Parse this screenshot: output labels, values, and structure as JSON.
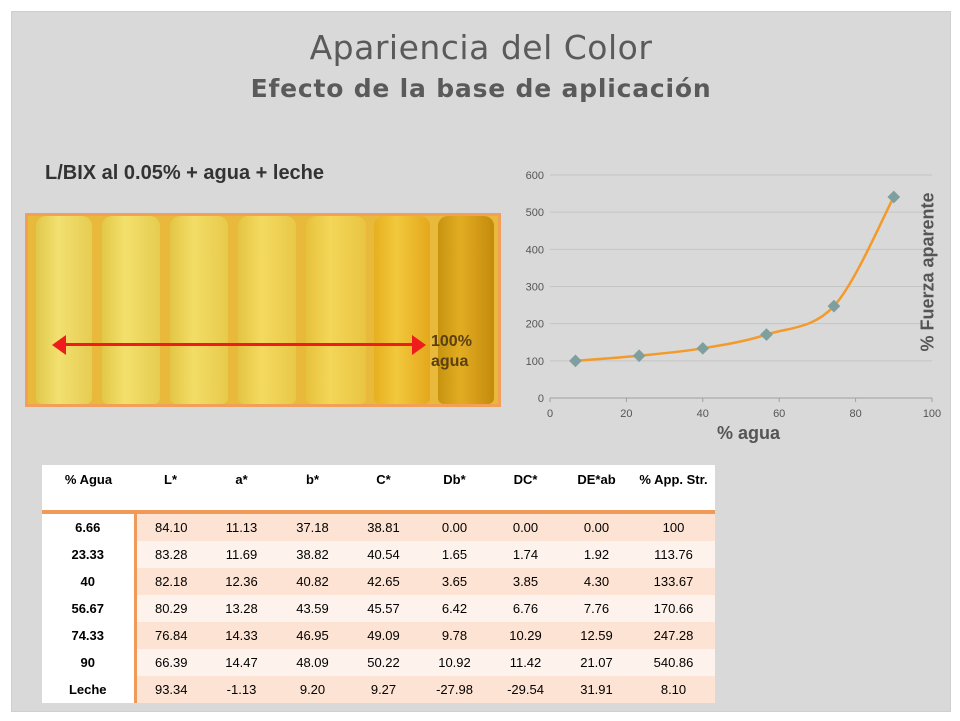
{
  "title": "Apariencia del Color",
  "subtitle": "Efecto de la base de aplicación",
  "photo_caption": "L/BIX  al  0.05% + agua + leche",
  "photo_label_line1": "100%",
  "photo_label_line2": "agua",
  "colors": {
    "background": "#d9d9d9",
    "accent_orange": "#f09a5a",
    "curve": "#f39a2a",
    "marker": "#7f9f9f",
    "arrow": "#ee1c1c"
  },
  "chart_data": {
    "type": "scatter",
    "xlabel": "% agua",
    "ylabel": "% Fuerza aparente",
    "xlim": [
      0,
      100
    ],
    "ylim": [
      0,
      600
    ],
    "x_ticks": [
      "0",
      "20",
      "40",
      "60",
      "80",
      "100"
    ],
    "y_ticks": [
      "0",
      "100",
      "200",
      "300",
      "400",
      "500",
      "600"
    ],
    "grid": "horizontal",
    "series": [
      {
        "x": [
          6.66,
          23.33,
          40,
          56.67,
          74.33,
          90
        ],
        "y": [
          100,
          113.76,
          133.67,
          170.66,
          247.28,
          540.86
        ]
      }
    ]
  },
  "table": {
    "headers": [
      "% Agua",
      "L*",
      "a*",
      "b*",
      "C*",
      "Db*",
      "DC*",
      "DE*ab",
      "% App. Str."
    ],
    "rows": [
      [
        "6.66",
        "84.10",
        "11.13",
        "37.18",
        "38.81",
        "0.00",
        "0.00",
        "0.00",
        "100"
      ],
      [
        "23.33",
        "83.28",
        "11.69",
        "38.82",
        "40.54",
        "1.65",
        "1.74",
        "1.92",
        "113.76"
      ],
      [
        "40",
        "82.18",
        "12.36",
        "40.82",
        "42.65",
        "3.65",
        "3.85",
        "4.30",
        "133.67"
      ],
      [
        "56.67",
        "80.29",
        "13.28",
        "43.59",
        "45.57",
        "6.42",
        "6.76",
        "7.76",
        "170.66"
      ],
      [
        "74.33",
        "76.84",
        "14.33",
        "46.95",
        "49.09",
        "9.78",
        "10.29",
        "12.59",
        "247.28"
      ],
      [
        "90",
        "66.39",
        "14.47",
        "48.09",
        "50.22",
        "10.92",
        "11.42",
        "21.07",
        "540.86"
      ],
      [
        "Leche",
        "93.34",
        "-1.13",
        "9.20",
        "9.27",
        "-27.98",
        "-29.54",
        "31.91",
        "8.10"
      ]
    ]
  }
}
